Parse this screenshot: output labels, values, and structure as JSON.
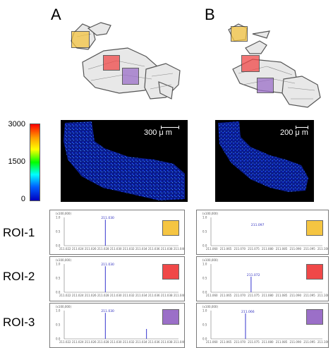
{
  "panels": {
    "A": {
      "letter": "A",
      "scale_label": "300 μ m"
    },
    "B": {
      "letter": "B",
      "scale_label": "200 μ m"
    }
  },
  "colorbar": {
    "max": "3000",
    "mid": "1500",
    "min": "0"
  },
  "roi_colors": {
    "roi1": "#f5c542",
    "roi2": "#f04848",
    "roi3": "#9b6fc8"
  },
  "roi_rows": [
    {
      "label": "ROI-1",
      "left": {
        "header": "(x100,000)",
        "peak_label": "211.030",
        "y_ticks": [
          "1.0",
          "0.5",
          "0.0"
        ],
        "x_ticks": [
          "211.022",
          "211.024",
          "211.026",
          "211.028",
          "211.030",
          "211.032",
          "211.034",
          "211.036",
          "211.038",
          "211.040"
        ]
      },
      "right": {
        "header": "(x100,000)",
        "peak_label": "211.097",
        "y_ticks": [
          "1.0",
          "0.5",
          "0.0"
        ],
        "x_ticks": [
          "211.060",
          "211.065",
          "211.070",
          "211.075",
          "211.080",
          "211.085",
          "211.090",
          "211.095",
          "211.100"
        ]
      }
    },
    {
      "label": "ROI-2",
      "left": {
        "header": "(x100,000)",
        "peak_label": "211.030",
        "y_ticks": [
          "1.0",
          "0.5",
          "0.0"
        ],
        "x_ticks": [
          "211.022",
          "211.024",
          "211.026",
          "211.028",
          "211.030",
          "211.032",
          "211.034",
          "211.036",
          "211.038",
          "211.040"
        ]
      },
      "right": {
        "header": "(x100,000)",
        "peak_label": "211.072",
        "y_ticks": [
          "1.0",
          "0.5",
          "0.0"
        ],
        "x_ticks": [
          "211.060",
          "211.065",
          "211.070",
          "211.075",
          "211.080",
          "211.085",
          "211.090",
          "211.095",
          "211.100"
        ]
      }
    },
    {
      "label": "ROI-3",
      "left": {
        "header": "(x100,000)",
        "peak_label": "211.030",
        "y_ticks": [
          "1.0",
          "0.5",
          "0.0"
        ],
        "x_ticks": [
          "211.022",
          "211.024",
          "211.026",
          "211.028",
          "211.030",
          "211.032",
          "211.034",
          "211.036",
          "211.038",
          "211.040"
        ]
      },
      "right": {
        "header": "(x100,000)",
        "peak_label": "211.066",
        "y_ticks": [
          "1.0",
          "0.5",
          "0.0"
        ],
        "x_ticks": [
          "211.060",
          "211.065",
          "211.070",
          "211.075",
          "211.080",
          "211.085",
          "211.090",
          "211.095",
          "211.100"
        ]
      }
    }
  ]
}
